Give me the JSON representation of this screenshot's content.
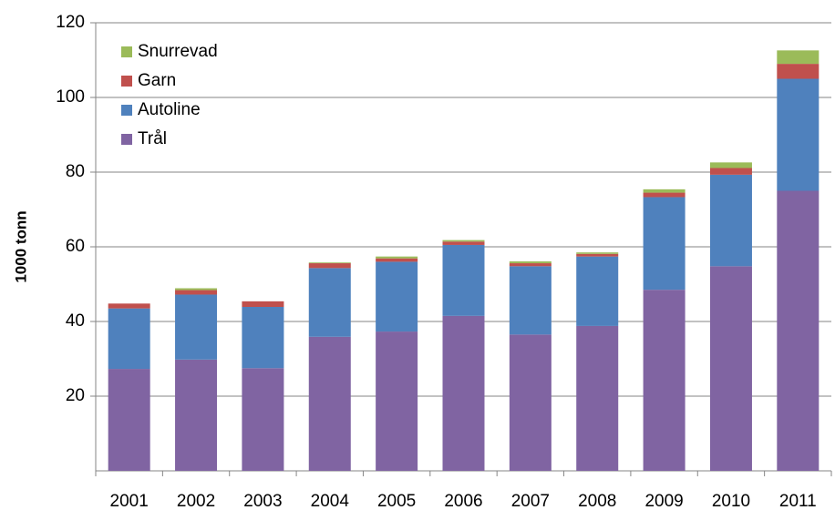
{
  "chart_data": {
    "type": "stacked-bar",
    "y_label": "1000 tonn",
    "categories": [
      "2001",
      "2002",
      "2003",
      "2004",
      "2005",
      "2006",
      "2007",
      "2008",
      "2009",
      "2010",
      "2011"
    ],
    "series": [
      {
        "name": "Trål",
        "color": "#8064a2",
        "values": [
          27.3,
          29.8,
          27.5,
          35.9,
          37.3,
          41.5,
          36.5,
          38.8,
          48.5,
          54.8,
          75.0
        ]
      },
      {
        "name": "Autoline",
        "color": "#4f81bd",
        "values": [
          16.2,
          17.4,
          16.4,
          18.4,
          18.7,
          19.0,
          18.3,
          18.6,
          24.8,
          24.5,
          30.0
        ]
      },
      {
        "name": "Garn",
        "color": "#c0504d",
        "values": [
          1.3,
          1.2,
          1.5,
          1.3,
          0.9,
          0.9,
          0.8,
          0.7,
          1.2,
          1.8,
          4.0
        ]
      },
      {
        "name": "Snurrevad",
        "color": "#9bbb59",
        "values": [
          0,
          0.5,
          0,
          0.2,
          0.5,
          0.4,
          0.5,
          0.4,
          0.9,
          1.5,
          3.6
        ]
      }
    ],
    "ylim": [
      0,
      120
    ],
    "yticks": [
      20,
      40,
      60,
      80,
      100,
      120
    ],
    "grid": true,
    "legend": "top-left"
  }
}
